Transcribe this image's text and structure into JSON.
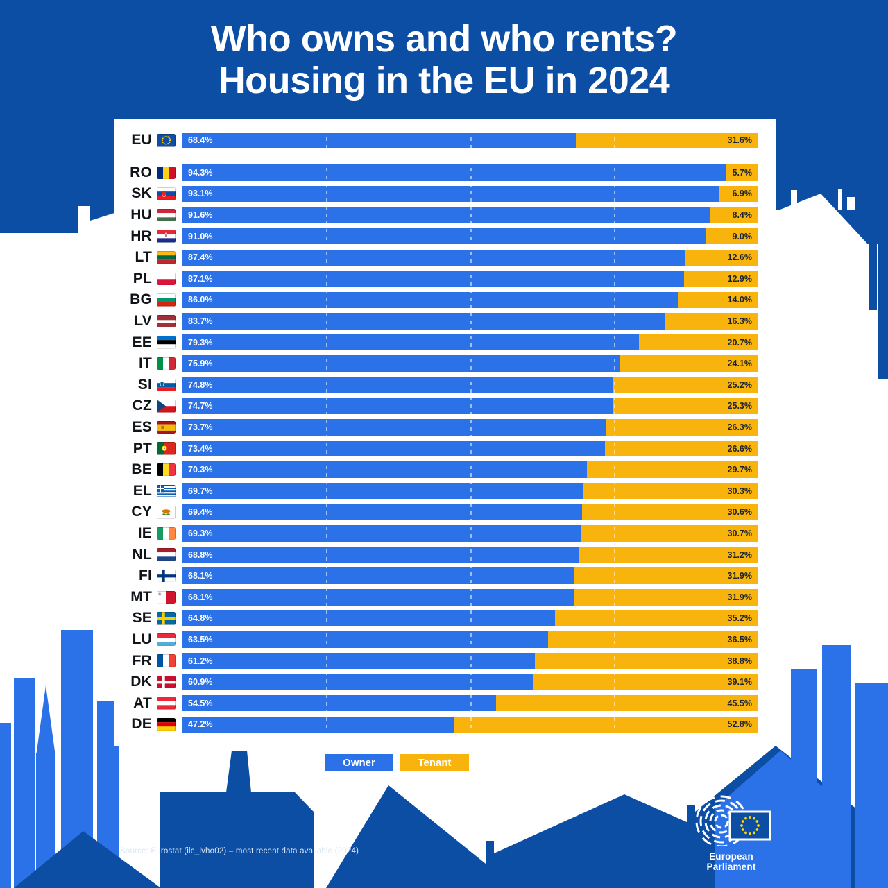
{
  "title": {
    "line1": "Who owns and who rents?",
    "line2": "Housing in the EU in 2024"
  },
  "legend": {
    "owner": "Owner",
    "tenant": "Tenant"
  },
  "source": "Source: Eurostat (ilc_lvho02) – most recent data available (2024)",
  "logo": {
    "caption": "European Parliament"
  },
  "colors": {
    "background": "#0C4EA4",
    "panel": "#FFFFFF",
    "owner": "#2B72E8",
    "tenant": "#F8B40D",
    "owner_label": "#FFFFFF",
    "tenant_label": "#1B2430",
    "title": "#FFFFFF",
    "code_label": "#101418",
    "skyline_accent": "#2B72E8"
  },
  "chart_data": {
    "type": "bar",
    "orientation": "horizontal",
    "stacked": true,
    "unit": "%",
    "title": "Who owns and who rents? Housing in the EU in 2024",
    "legend_position": "bottom",
    "xlim": [
      0,
      100
    ],
    "gridlines_percent": [
      25,
      50,
      75
    ],
    "series": [
      {
        "name": "Owner",
        "color": "#2B72E8"
      },
      {
        "name": "Tenant",
        "color": "#F8B40D"
      }
    ],
    "rows": [
      {
        "code": "EU",
        "owner": 68.4,
        "tenant": 31.6,
        "flag": {
          "t": "eu"
        }
      },
      {
        "code": "RO",
        "owner": 94.3,
        "tenant": 5.7,
        "flag": {
          "t": "v",
          "c": [
            "#002B7F",
            "#FCD116",
            "#CE1126"
          ]
        }
      },
      {
        "code": "SK",
        "owner": 93.1,
        "tenant": 6.9,
        "flag": {
          "t": "h",
          "c": [
            "#FFFFFF",
            "#0B4EA2",
            "#EE1C25"
          ],
          "e": "sk"
        }
      },
      {
        "code": "HU",
        "owner": 91.6,
        "tenant": 8.4,
        "flag": {
          "t": "h",
          "c": [
            "#CE2939",
            "#FFFFFF",
            "#436F4D"
          ]
        }
      },
      {
        "code": "HR",
        "owner": 91.0,
        "tenant": 9.0,
        "flag": {
          "t": "h",
          "c": [
            "#E32A35",
            "#FFFFFF",
            "#1A2F8A"
          ],
          "e": "hr"
        }
      },
      {
        "code": "LT",
        "owner": 87.4,
        "tenant": 12.6,
        "flag": {
          "t": "h",
          "c": [
            "#FDB913",
            "#006A44",
            "#C1272D"
          ]
        }
      },
      {
        "code": "PL",
        "owner": 87.1,
        "tenant": 12.9,
        "flag": {
          "t": "h",
          "c": [
            "#FFFFFF",
            "#DC143C"
          ]
        }
      },
      {
        "code": "BG",
        "owner": 86.0,
        "tenant": 14.0,
        "flag": {
          "t": "h",
          "c": [
            "#FFFFFF",
            "#00966E",
            "#D62612"
          ]
        }
      },
      {
        "code": "LV",
        "owner": 83.7,
        "tenant": 16.3,
        "flag": {
          "t": "h",
          "c": [
            "#9E3039",
            "#FFFFFF",
            "#9E3039"
          ],
          "w": [
            2,
            1,
            2
          ]
        }
      },
      {
        "code": "EE",
        "owner": 79.3,
        "tenant": 20.7,
        "flag": {
          "t": "h",
          "c": [
            "#0072CE",
            "#000000",
            "#FFFFFF"
          ]
        }
      },
      {
        "code": "IT",
        "owner": 75.9,
        "tenant": 24.1,
        "flag": {
          "t": "v",
          "c": [
            "#009246",
            "#FFFFFF",
            "#CE2B37"
          ]
        }
      },
      {
        "code": "SI",
        "owner": 74.8,
        "tenant": 25.2,
        "flag": {
          "t": "h",
          "c": [
            "#FFFFFF",
            "#005DA4",
            "#ED1C24"
          ],
          "e": "si"
        }
      },
      {
        "code": "CZ",
        "owner": 74.7,
        "tenant": 25.3,
        "flag": {
          "t": "cz",
          "c": [
            "#FFFFFF",
            "#D7141A",
            "#11457E"
          ]
        }
      },
      {
        "code": "ES",
        "owner": 73.7,
        "tenant": 26.3,
        "flag": {
          "t": "h",
          "c": [
            "#AA151B",
            "#F1BF00",
            "#AA151B"
          ],
          "w": [
            1,
            2,
            1
          ],
          "e": "es"
        }
      },
      {
        "code": "PT",
        "owner": 73.4,
        "tenant": 26.6,
        "flag": {
          "t": "pt",
          "c": [
            "#046A38",
            "#DA291C",
            "#FFE900"
          ]
        }
      },
      {
        "code": "BE",
        "owner": 70.3,
        "tenant": 29.7,
        "flag": {
          "t": "v",
          "c": [
            "#000000",
            "#FDDA24",
            "#EF3340"
          ]
        }
      },
      {
        "code": "EL",
        "owner": 69.7,
        "tenant": 30.3,
        "flag": {
          "t": "el",
          "c": [
            "#0D5EAF",
            "#FFFFFF"
          ]
        }
      },
      {
        "code": "CY",
        "owner": 69.4,
        "tenant": 30.6,
        "flag": {
          "t": "cy",
          "c": [
            "#FFFFFF",
            "#D57800",
            "#4E8B31"
          ]
        }
      },
      {
        "code": "IE",
        "owner": 69.3,
        "tenant": 30.7,
        "flag": {
          "t": "v",
          "c": [
            "#169B62",
            "#FFFFFF",
            "#FF883E"
          ]
        }
      },
      {
        "code": "NL",
        "owner": 68.8,
        "tenant": 31.2,
        "flag": {
          "t": "h",
          "c": [
            "#AE1C28",
            "#FFFFFF",
            "#21468B"
          ]
        }
      },
      {
        "code": "FI",
        "owner": 68.1,
        "tenant": 31.9,
        "flag": {
          "t": "nordic",
          "c": [
            "#FFFFFF",
            "#003580"
          ]
        }
      },
      {
        "code": "MT",
        "owner": 68.1,
        "tenant": 31.9,
        "flag": {
          "t": "mt",
          "c": [
            "#FFFFFF",
            "#CF142B",
            "#9A9A9A"
          ]
        }
      },
      {
        "code": "SE",
        "owner": 64.8,
        "tenant": 35.2,
        "flag": {
          "t": "nordic",
          "c": [
            "#006AA7",
            "#FECC02"
          ]
        }
      },
      {
        "code": "LU",
        "owner": 63.5,
        "tenant": 36.5,
        "flag": {
          "t": "h",
          "c": [
            "#ED2939",
            "#FFFFFF",
            "#51ADDA"
          ]
        }
      },
      {
        "code": "FR",
        "owner": 61.2,
        "tenant": 38.8,
        "flag": {
          "t": "v",
          "c": [
            "#0055A4",
            "#FFFFFF",
            "#EF4135"
          ]
        }
      },
      {
        "code": "DK",
        "owner": 60.9,
        "tenant": 39.1,
        "flag": {
          "t": "nordic",
          "c": [
            "#C8102E",
            "#FFFFFF"
          ]
        }
      },
      {
        "code": "AT",
        "owner": 54.5,
        "tenant": 45.5,
        "flag": {
          "t": "h",
          "c": [
            "#ED2939",
            "#FFFFFF",
            "#ED2939"
          ]
        }
      },
      {
        "code": "DE",
        "owner": 47.2,
        "tenant": 52.8,
        "flag": {
          "t": "h",
          "c": [
            "#000000",
            "#DD0000",
            "#FFCE00"
          ]
        }
      }
    ]
  }
}
